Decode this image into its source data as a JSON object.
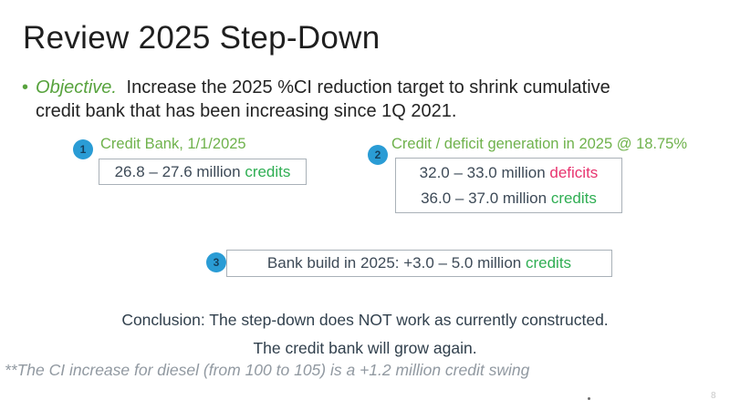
{
  "slide": {
    "title": "Review 2025 Step-Down",
    "bullet": {
      "marker": "•",
      "lead": "Objective.",
      "line1": "Increase the 2025 %CI reduction target to shrink cumulative",
      "line2": "credit bank that has been increasing since 1Q 2021."
    },
    "items": [
      {
        "number": "1",
        "heading": "Credit Bank, 1/1/2025",
        "lines": [
          {
            "value": "26.8 – 27.6 million",
            "unit": "credits"
          }
        ]
      },
      {
        "number": "2",
        "heading": "Credit / deficit generation in 2025 @ 18.75%",
        "lines": [
          {
            "value": "32.0 – 33.0 million",
            "unit": "deficits"
          },
          {
            "value": "36.0 – 37.0 million",
            "unit": "credits"
          }
        ]
      },
      {
        "number": "3",
        "heading": "",
        "lines": [
          {
            "value": "Bank build in 2025: +3.0 – 5.0 million",
            "unit": "credits"
          }
        ]
      }
    ],
    "conclusion_line1": "Conclusion: The step-down does NOT work as currently constructed.",
    "conclusion_line2": "The credit bank will grow again.",
    "footnote": "**The CI increase for diesel (from 100 to 105) is a +1.2 million credit swing",
    "page_number": "8",
    "colors": {
      "objective_green": "#58a33e",
      "heading_green": "#6fb24c",
      "credits_green": "#2fae53",
      "deficits_pink": "#e8336e",
      "badge_blue": "#2a9cd5",
      "badge_number_navy": "#15405e",
      "body_navy": "#3d4a57",
      "conclusion_navy": "#31404d",
      "footnote_gray": "#9199a1",
      "title_black": "#1f1f1f"
    }
  }
}
